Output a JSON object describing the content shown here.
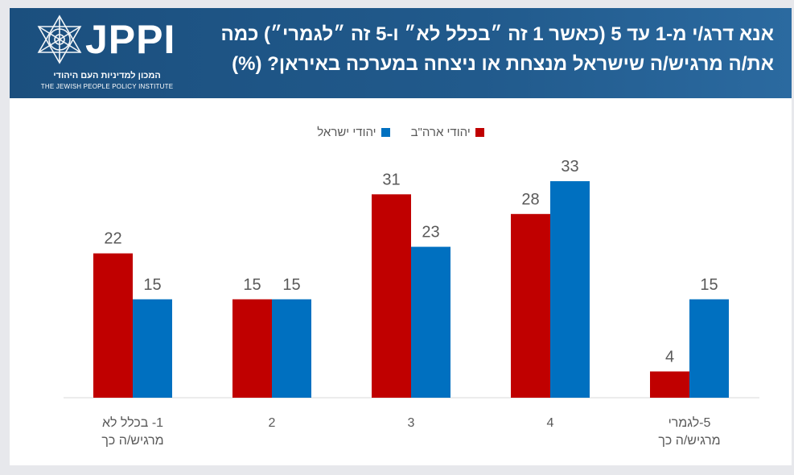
{
  "header": {
    "logo_text": "JPPI",
    "logo_hebrew": "המכון למדיניות העם היהודי",
    "logo_english": "THE JEWISH PEOPLE POLICY INSTITUTE",
    "title": "אנא דרג/י מ-1 עד 5 (כאשר 1 זה ״בכלל לא״ ו-5 זה ״לגמרי״) כמה את/ה מרגיש/ה שישראל מנצחת או ניצחה במערכה באיראן? (%)"
  },
  "colors": {
    "header_bg": "#215a8c",
    "us_jews": "#c00000",
    "israel_jews": "#0070c0",
    "label_text": "#595959",
    "axis_line": "#d9d9d9"
  },
  "chart_data": {
    "type": "bar",
    "categories": [
      "1- בכלל לא מרגיש/ה כך",
      "2",
      "3",
      "4",
      "5-לגמרי מרגיש/ה כך"
    ],
    "series": [
      {
        "name": "יהודי ארה\"ב",
        "color": "#c00000",
        "values": [
          22,
          15,
          31,
          28,
          4
        ]
      },
      {
        "name": "יהודי ישראל",
        "color": "#0070c0",
        "values": [
          15,
          15,
          23,
          33,
          15
        ]
      }
    ],
    "ylim": [
      0,
      40
    ],
    "grid": false,
    "legend_position": "top-center",
    "data_labels": true
  }
}
